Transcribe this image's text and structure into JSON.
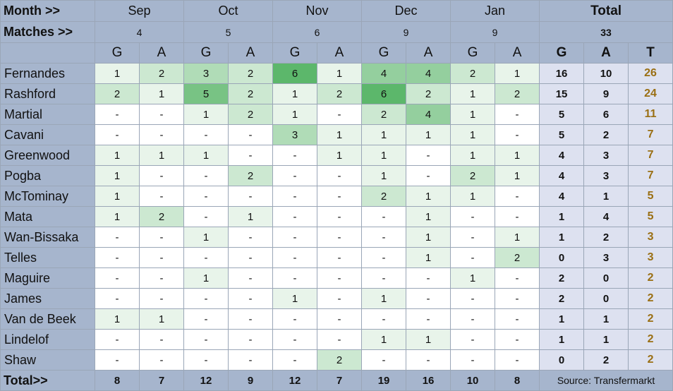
{
  "chart_data": {
    "type": "table",
    "header": {
      "month_label": "Month >>",
      "matches_label": "Matches >>",
      "months": [
        "Sep",
        "Oct",
        "Nov",
        "Dec",
        "Jan"
      ],
      "matches": [
        "4",
        "5",
        "6",
        "9",
        "9"
      ],
      "total_label": "Total",
      "total_matches": "33",
      "g_label": "G",
      "a_label": "A",
      "t_label": "T"
    },
    "players": [
      {
        "name": "Fernandes",
        "cells": [
          "1",
          "2",
          "3",
          "2",
          "6",
          "1",
          "4",
          "4",
          "2",
          "1"
        ],
        "g": "16",
        "a": "10",
        "t": "26"
      },
      {
        "name": "Rashford",
        "cells": [
          "2",
          "1",
          "5",
          "2",
          "1",
          "2",
          "6",
          "2",
          "1",
          "2"
        ],
        "g": "15",
        "a": "9",
        "t": "24"
      },
      {
        "name": "Martial",
        "cells": [
          "-",
          "-",
          "1",
          "2",
          "1",
          "-",
          "2",
          "4",
          "1",
          "-"
        ],
        "g": "5",
        "a": "6",
        "t": "11"
      },
      {
        "name": "Cavani",
        "cells": [
          "-",
          "-",
          "-",
          "-",
          "3",
          "1",
          "1",
          "1",
          "1",
          "-"
        ],
        "g": "5",
        "a": "2",
        "t": "7"
      },
      {
        "name": "Greenwood",
        "cells": [
          "1",
          "1",
          "1",
          "-",
          "-",
          "1",
          "1",
          "-",
          "1",
          "1"
        ],
        "g": "4",
        "a": "3",
        "t": "7"
      },
      {
        "name": "Pogba",
        "cells": [
          "1",
          "-",
          "-",
          "2",
          "-",
          "-",
          "1",
          "-",
          "2",
          "1"
        ],
        "g": "4",
        "a": "3",
        "t": "7"
      },
      {
        "name": "McTominay",
        "cells": [
          "1",
          "-",
          "-",
          "-",
          "-",
          "-",
          "2",
          "1",
          "1",
          "-"
        ],
        "g": "4",
        "a": "1",
        "t": "5"
      },
      {
        "name": "Mata",
        "cells": [
          "1",
          "2",
          "-",
          "1",
          "-",
          "-",
          "-",
          "1",
          "-",
          "-"
        ],
        "g": "1",
        "a": "4",
        "t": "5"
      },
      {
        "name": "Wan-Bissaka",
        "cells": [
          "-",
          "-",
          "1",
          "-",
          "-",
          "-",
          "-",
          "1",
          "-",
          "1"
        ],
        "g": "1",
        "a": "2",
        "t": "3"
      },
      {
        "name": "Telles",
        "cells": [
          "-",
          "-",
          "-",
          "-",
          "-",
          "-",
          "-",
          "1",
          "-",
          "2"
        ],
        "g": "0",
        "a": "3",
        "t": "3"
      },
      {
        "name": "Maguire",
        "cells": [
          "-",
          "-",
          "1",
          "-",
          "-",
          "-",
          "-",
          "-",
          "1",
          "-"
        ],
        "g": "2",
        "a": "0",
        "t": "2"
      },
      {
        "name": "James",
        "cells": [
          "-",
          "-",
          "-",
          "-",
          "1",
          "-",
          "1",
          "-",
          "-",
          "-"
        ],
        "g": "2",
        "a": "0",
        "t": "2"
      },
      {
        "name": "Van de Beek",
        "cells": [
          "1",
          "1",
          "-",
          "-",
          "-",
          "-",
          "-",
          "-",
          "-",
          "-"
        ],
        "g": "1",
        "a": "1",
        "t": "2"
      },
      {
        "name": "Lindelof",
        "cells": [
          "-",
          "-",
          "-",
          "-",
          "-",
          "-",
          "1",
          "1",
          "-",
          "-"
        ],
        "g": "1",
        "a": "1",
        "t": "2"
      },
      {
        "name": "Shaw",
        "cells": [
          "-",
          "-",
          "-",
          "-",
          "-",
          "2",
          "-",
          "-",
          "-",
          "-"
        ],
        "g": "0",
        "a": "2",
        "t": "2"
      }
    ],
    "footer": {
      "label": "Total>>",
      "values": [
        "8",
        "7",
        "12",
        "9",
        "12",
        "7",
        "19",
        "16",
        "10",
        "8"
      ],
      "source": "Source: Transfermarkt"
    },
    "colors": {
      "header_bg": "#a6b5cd",
      "totals_bg": "#dde1f0",
      "t_text": "#9a6f14",
      "scale_low": "#e8f4ea",
      "scale_high": "#5cb76b"
    }
  }
}
